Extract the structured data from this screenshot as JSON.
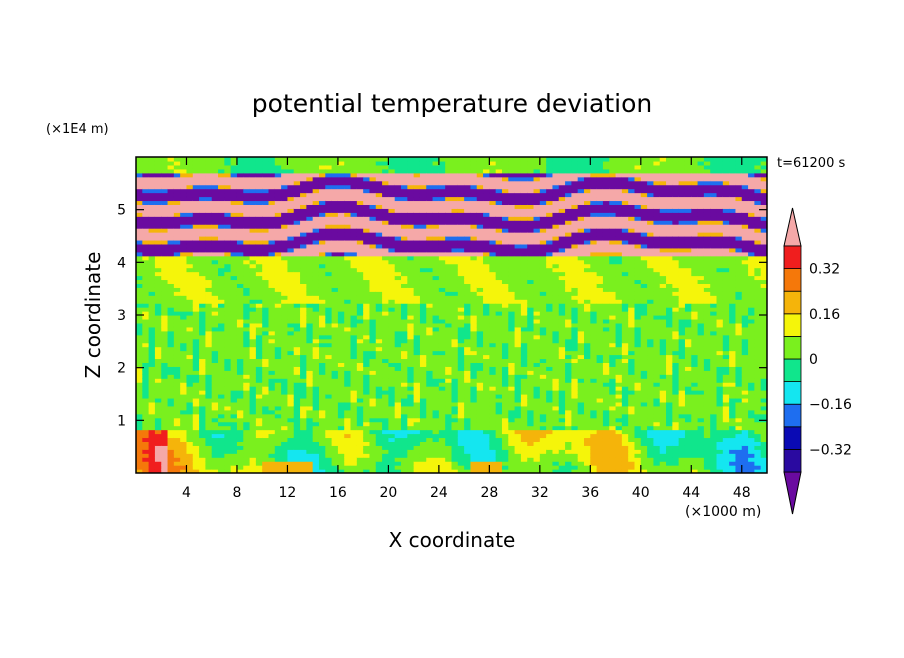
{
  "chart_data": {
    "type": "heatmap",
    "title": "potential temperature deviation",
    "xlabel": "X coordinate",
    "ylabel": "Z coordinate",
    "x_unit": "(×1000 m)",
    "y_unit": "(×1E4 m)",
    "time_label": "t=61200 s",
    "xlim": [
      0,
      50
    ],
    "ylim": [
      0,
      6
    ],
    "x_ticks": [
      4,
      8,
      12,
      16,
      20,
      24,
      28,
      32,
      36,
      40,
      44,
      48
    ],
    "y_ticks": [
      1,
      2,
      3,
      4,
      5
    ],
    "colorbar": {
      "levels": [
        -0.4,
        -0.32,
        -0.24,
        -0.16,
        -0.08,
        0,
        0.08,
        0.16,
        0.24,
        0.32,
        0.4
      ],
      "labeled_levels": [
        -0.32,
        -0.16,
        0,
        0.16,
        0.32
      ],
      "tick_labels": [
        "−0.32",
        "−0.16",
        "0",
        "0.16",
        "0.32"
      ],
      "colors": [
        "#6a0aa0",
        "#2a0aa0",
        "#0a0ab4",
        "#1e6ef0",
        "#14e6f0",
        "#10e68c",
        "#7af01e",
        "#f5f50a",
        "#f5b40a",
        "#f5780a",
        "#f01e1e",
        "#f5a8a8"
      ],
      "extend": "both"
    }
  }
}
